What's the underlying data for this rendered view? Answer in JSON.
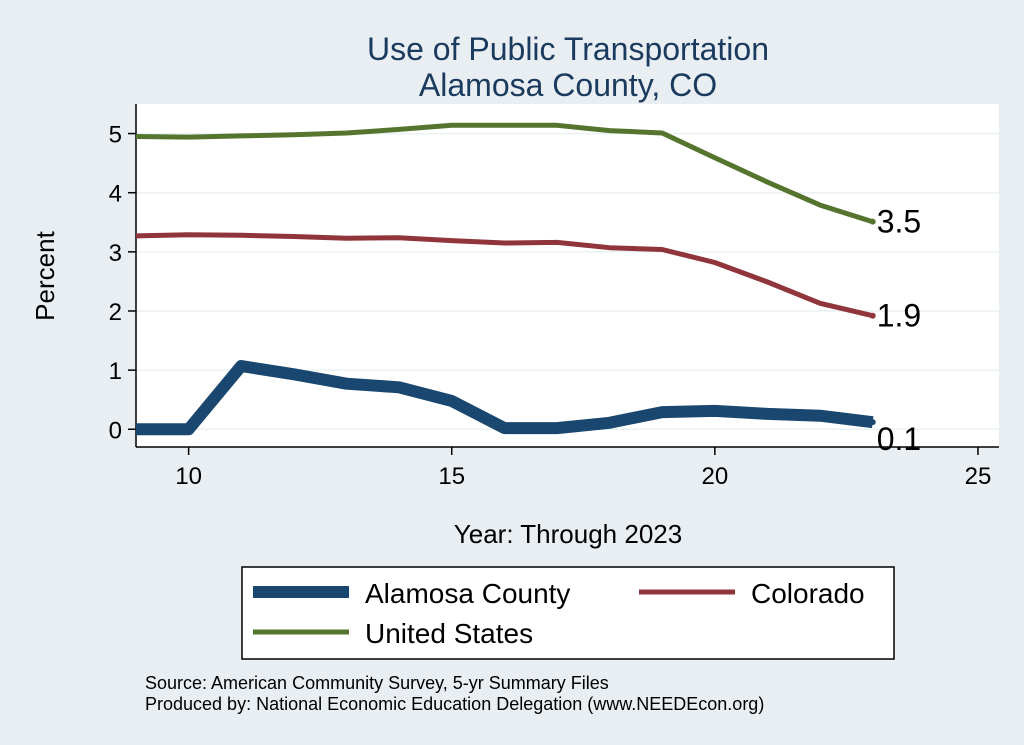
{
  "chart_data": {
    "type": "line",
    "title": [
      "Use of Public Transportation",
      "Alamosa County, CO"
    ],
    "xlabel": "Year: Through 2023",
    "ylabel": "Percent",
    "xlim": [
      9,
      25.4
    ],
    "ylim": [
      -0.3,
      5.5
    ],
    "xticks": [
      10,
      15,
      20,
      25
    ],
    "yticks": [
      0,
      1,
      2,
      3,
      4,
      5
    ],
    "grid": true,
    "series": [
      {
        "name": "Alamosa County",
        "color": "#1a476f",
        "x": [
          9,
          10,
          11,
          12,
          13,
          14,
          15,
          16,
          17,
          18,
          19,
          20,
          21,
          22,
          23
        ],
        "values": [
          0.0,
          0.0,
          1.07,
          0.93,
          0.77,
          0.71,
          0.48,
          0.02,
          0.02,
          0.11,
          0.29,
          0.31,
          0.26,
          0.23,
          0.12
        ],
        "end_label": "0.1"
      },
      {
        "name": "Colorado",
        "color": "#90353b",
        "x": [
          9,
          10,
          11,
          12,
          13,
          14,
          15,
          16,
          17,
          18,
          19,
          20,
          21,
          22,
          23
        ],
        "values": [
          3.27,
          3.29,
          3.28,
          3.26,
          3.23,
          3.24,
          3.19,
          3.15,
          3.16,
          3.07,
          3.04,
          2.82,
          2.49,
          2.13,
          1.92
        ],
        "end_label": "1.9"
      },
      {
        "name": "United States",
        "color": "#55752f",
        "x": [
          9,
          10,
          11,
          12,
          13,
          14,
          15,
          16,
          17,
          18,
          19,
          20,
          21,
          22,
          23
        ],
        "values": [
          4.95,
          4.94,
          4.96,
          4.98,
          5.01,
          5.07,
          5.14,
          5.14,
          5.14,
          5.05,
          5.01,
          4.59,
          4.18,
          3.79,
          3.51
        ],
        "end_label": "3.5"
      }
    ],
    "legend": {
      "placement": "bottom",
      "entries": [
        "Alamosa County",
        "Colorado",
        "United States"
      ]
    },
    "notes": [
      "Source: American Community Survey, 5-yr Summary Files",
      "Produced by: National Economic Education Delegation (www.NEEDEcon.org)"
    ]
  }
}
